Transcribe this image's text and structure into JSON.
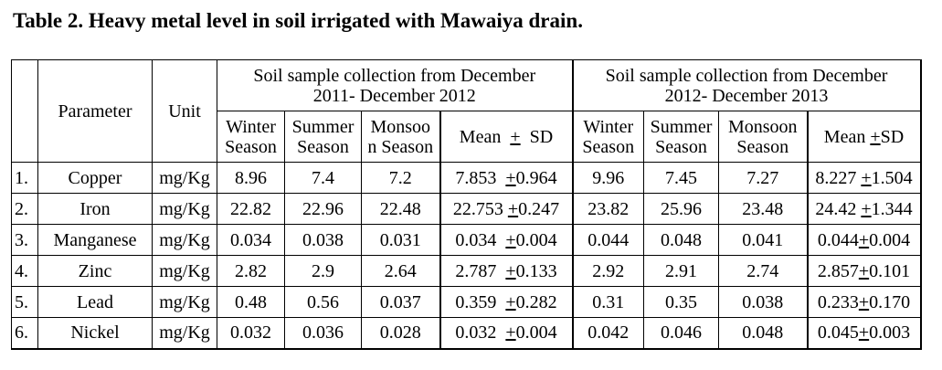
{
  "caption": "Table 2. Heavy metal level in soil irrigated with Mawaiya drain.",
  "header": {
    "parameter": "Parameter",
    "unit": "Unit",
    "period1": "Soil sample collection from December 2011- December 2012",
    "period1_line1": "Soil sample collection from December",
    "period1_line2": "2011- December 2012",
    "period2_line1": "Soil sample collection from December",
    "period2_line2": "2012- December 2013",
    "p1_winter_1": "Winter",
    "p1_winter_2": "Season",
    "p1_summer_1": "Summer",
    "p1_summer_2": "Season",
    "p1_monsoon_1": "Monsoo",
    "p1_monsoon_2": "n Season",
    "p1_mean_a": "Mean",
    "p1_mean_pm": "+",
    "p1_mean_b": "SD",
    "p2_winter_1": "Winter",
    "p2_winter_2": "Season",
    "p2_summer_1": "Summer",
    "p2_summer_2": "Season",
    "p2_monsoon_1": "Monsoon",
    "p2_monsoon_2": "Season",
    "p2_mean_a": "Mean",
    "p2_mean_pm": "+",
    "p2_mean_b": "SD"
  },
  "rows": [
    {
      "no": "1.",
      "parameter": "Copper",
      "unit": "mg/Kg",
      "p1": {
        "winter": "8.96",
        "summer": "7.4",
        "monsoon": "7.2",
        "mean": "7.853",
        "sd": "0.964"
      },
      "p2": {
        "winter": "9.96",
        "summer": "7.45",
        "monsoon": "7.27",
        "mean": "8.227",
        "sd": "1.504"
      }
    },
    {
      "no": "2.",
      "parameter": "Iron",
      "unit": "mg/Kg",
      "p1": {
        "winter": "22.82",
        "summer": "22.96",
        "monsoon": "22.48",
        "mean": "22.753",
        "sd": "0.247"
      },
      "p2": {
        "winter": "23.82",
        "summer": "25.96",
        "monsoon": "23.48",
        "mean": "24.42",
        "sd": "1.344"
      }
    },
    {
      "no": "3.",
      "parameter": "Manganese",
      "unit": "mg/Kg",
      "p1": {
        "winter": "0.034",
        "summer": "0.038",
        "monsoon": "0.031",
        "mean": "0.034",
        "sd": "0.004"
      },
      "p2": {
        "winter": "0.044",
        "summer": "0.048",
        "monsoon": "0.041",
        "mean": "0.044",
        "sd": "0.004"
      }
    },
    {
      "no": "4.",
      "parameter": "Zinc",
      "unit": "mg/Kg",
      "p1": {
        "winter": "2.82",
        "summer": "2.9",
        "monsoon": "2.64",
        "mean": "2.787",
        "sd": "0.133"
      },
      "p2": {
        "winter": "2.92",
        "summer": "2.91",
        "monsoon": "2.74",
        "mean": "2.857",
        "sd": "0.101"
      }
    },
    {
      "no": "5.",
      "parameter": "Lead",
      "unit": "mg/Kg",
      "p1": {
        "winter": "0.48",
        "summer": "0.56",
        "monsoon": "0.037",
        "mean": "0.359",
        "sd": "0.282"
      },
      "p2": {
        "winter": "0.31",
        "summer": "0.35",
        "monsoon": "0.038",
        "mean": "0.233",
        "sd": "0.170"
      }
    },
    {
      "no": "6.",
      "parameter": "Nickel",
      "unit": "mg/Kg",
      "p1": {
        "winter": "0.032",
        "summer": "0.036",
        "monsoon": "0.028",
        "mean": "0.032",
        "sd": "0.004"
      },
      "p2": {
        "winter": "0.042",
        "summer": "0.046",
        "monsoon": "0.048",
        "mean": "0.045",
        "sd": "0.003"
      }
    }
  ],
  "pm_symbol": "+"
}
